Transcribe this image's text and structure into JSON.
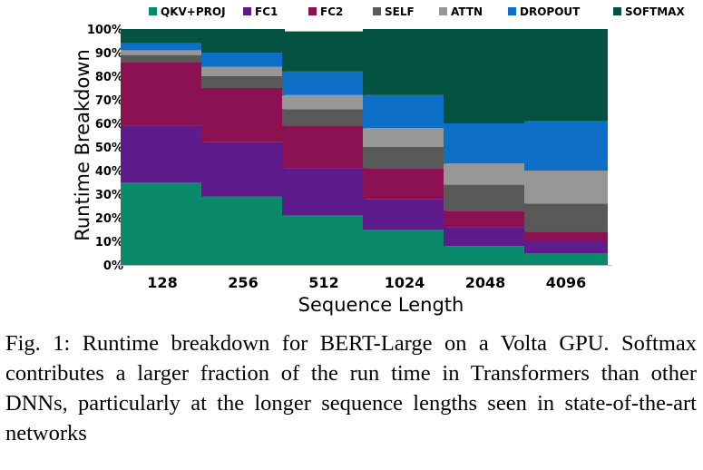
{
  "chart_data": {
    "type": "bar",
    "stacked": true,
    "xlabel": "Sequence Length",
    "ylabel": "Runtime Breakdown",
    "categories": [
      "128",
      "256",
      "512",
      "1024",
      "2048",
      "4096"
    ],
    "ylim": [
      0,
      100
    ],
    "yticks": [
      0,
      10,
      20,
      30,
      40,
      50,
      60,
      70,
      80,
      90,
      100
    ],
    "ytick_suffix": "%",
    "legend_position": "top",
    "grid": false,
    "series": [
      {
        "name": "QKV+PROJ",
        "color": "#0a8a6a",
        "values": [
          35,
          29,
          21,
          15,
          8,
          5
        ]
      },
      {
        "name": "FC1",
        "color": "#5e1b8c",
        "values": [
          24,
          23,
          20,
          13,
          8,
          5
        ]
      },
      {
        "name": "FC2",
        "color": "#8b1153",
        "values": [
          27,
          23,
          18,
          13,
          7,
          4
        ]
      },
      {
        "name": "SELF",
        "color": "#595959",
        "values": [
          3,
          5,
          7,
          9,
          11,
          12
        ]
      },
      {
        "name": "ATTN",
        "color": "#979797",
        "values": [
          2,
          4,
          6,
          8,
          9,
          14
        ]
      },
      {
        "name": "DROPOUT",
        "color": "#0e6fc7",
        "values": [
          3,
          6,
          10,
          14,
          17,
          21
        ]
      },
      {
        "name": "SOFTMAX",
        "color": "#045240",
        "values": [
          6,
          10,
          17,
          28,
          40,
          39
        ]
      }
    ]
  },
  "caption": {
    "label": "Fig. 1:",
    "text": "Runtime breakdown for BERT-Large on a Volta GPU. Softmax contributes a larger fraction of the run time in Transformers than other DNNs, particularly at the longer sequence lengths seen in state-of-the-art networks"
  }
}
